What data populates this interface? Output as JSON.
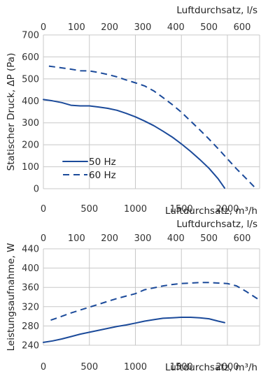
{
  "chart_data": [
    {
      "type": "line",
      "xlabel": "Luftdurchsatz, m³/h",
      "x2label": "Luftdurchsatz, l/s",
      "ylabel": "Statischer Druck, ΔP (Pa)",
      "xlim": [
        0,
        2350
      ],
      "x2lim": [
        0,
        652.8
      ],
      "ylim": [
        0,
        700
      ],
      "xticks": [
        0,
        500,
        1000,
        1500,
        2000
      ],
      "x2ticks": [
        0,
        100,
        200,
        300,
        400,
        500,
        600
      ],
      "yticks": [
        0,
        100,
        200,
        300,
        400,
        500,
        600,
        700
      ],
      "grid": true,
      "legend": "left",
      "series": [
        {
          "name": "50 Hz",
          "style": "solid",
          "color": "#1b4a9a",
          "x": [
            0,
            100,
            200,
            300,
            400,
            500,
            600,
            700,
            800,
            900,
            1000,
            1100,
            1200,
            1300,
            1400,
            1500,
            1600,
            1700,
            1800,
            1900,
            1970
          ],
          "y": [
            406,
            400,
            392,
            380,
            377,
            377,
            372,
            366,
            357,
            343,
            327,
            308,
            287,
            262,
            235,
            204,
            170,
            133,
            93,
            45,
            3
          ]
        },
        {
          "name": "60 Hz",
          "style": "dashed",
          "color": "#1b4a9a",
          "x": [
            60,
            200,
            300,
            400,
            500,
            600,
            700,
            800,
            900,
            1000,
            1100,
            1200,
            1300,
            1400,
            1500,
            1600,
            1700,
            1800,
            1900,
            2000,
            2100,
            2200,
            2300
          ],
          "y": [
            558,
            550,
            544,
            537,
            536,
            529,
            520,
            509,
            495,
            482,
            468,
            445,
            415,
            383,
            348,
            308,
            268,
            226,
            182,
            136,
            90,
            48,
            5
          ]
        }
      ]
    },
    {
      "type": "line",
      "xlabel": "Luftdurchsatz, m³/h",
      "x2label": "Luftdurchsatz, l/s",
      "ylabel": "Leistungsaufnahme, W",
      "xlim": [
        0,
        2350
      ],
      "x2lim": [
        0,
        652.8
      ],
      "ylim": [
        240,
        440
      ],
      "xticks": [
        0,
        500,
        1000,
        1500,
        2000
      ],
      "x2ticks": [
        0,
        100,
        200,
        300,
        400,
        500,
        600
      ],
      "yticks": [
        240,
        280,
        320,
        360,
        400,
        440
      ],
      "grid": true,
      "series": [
        {
          "style": "solid",
          "color": "#1b4a9a",
          "x": [
            0,
            100,
            200,
            300,
            400,
            500,
            600,
            700,
            800,
            900,
            1000,
            1100,
            1200,
            1300,
            1400,
            1500,
            1600,
            1700,
            1800,
            1900,
            1970
          ],
          "y": [
            246,
            249,
            253,
            258,
            263,
            267,
            271,
            275,
            279,
            282,
            286,
            290,
            293,
            296,
            297,
            298,
            298,
            297,
            295,
            290,
            287
          ]
        },
        {
          "style": "dashed",
          "color": "#1b4a9a",
          "x": [
            80,
            200,
            300,
            400,
            500,
            600,
            700,
            800,
            900,
            1000,
            1100,
            1200,
            1300,
            1400,
            1500,
            1600,
            1700,
            1800,
            1900,
            2000,
            2100,
            2200,
            2330
          ],
          "y": [
            292,
            300,
            307,
            313,
            319,
            325,
            331,
            337,
            342,
            347,
            355,
            359,
            363,
            366,
            368,
            369,
            370,
            370,
            369,
            368,
            363,
            352,
            336
          ]
        }
      ]
    }
  ]
}
